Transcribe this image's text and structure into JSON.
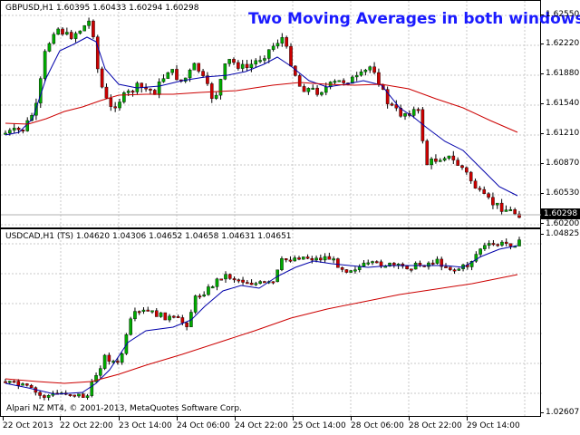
{
  "top_pane": {
    "symbol_info": "GBPUSD,H1  1.60395 1.60433 1.60294 1.60298",
    "overlay_title": "Two Moving Averages in both windows",
    "price_labels": [
      "1.62550",
      "1.62220",
      "1.61880",
      "1.61540",
      "1.61210",
      "1.60870",
      "1.60530",
      "1.60200"
    ],
    "current_price": "1.60298",
    "colors": {
      "ma_fast": "#0000aa",
      "ma_slow": "#cc0000",
      "bull": "#00aa00",
      "bear": "#cc0000",
      "doji": "#000000"
    }
  },
  "bottom_pane": {
    "symbol_info": "USDCAD,H1 (TS) 1.04620 1.04306 1.04652 1.04658 1.04631 1.04651",
    "copyright": "Alpari NZ MT4, © 2001-2013, MetaQuotes Software Corp.",
    "price_labels": [
      "1.04825",
      "1.02607"
    ]
  },
  "time_axis": [
    "22 Oct 2013",
    "22 Oct 22:00",
    "23 Oct 14:00",
    "24 Oct 06:00",
    "24 Oct 22:00",
    "25 Oct 14:00",
    "28 Oct 06:00",
    "28 Oct 22:00",
    "29 Oct 14:00"
  ]
}
